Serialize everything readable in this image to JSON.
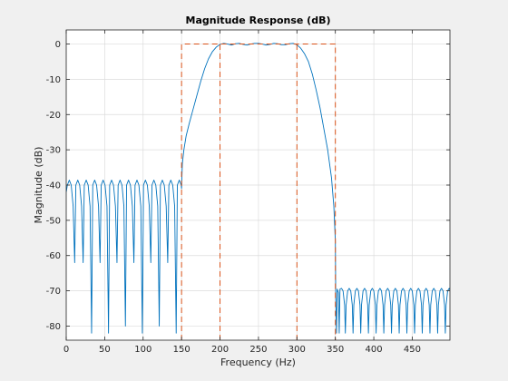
{
  "chart_data": {
    "type": "line",
    "title": "Magnitude Response (dB)",
    "xlabel": "Frequency (Hz)",
    "ylabel": "Magnitude (dB)",
    "xlim": [
      0,
      499
    ],
    "ylim": [
      -84,
      4
    ],
    "xticks": [
      0,
      50,
      100,
      150,
      200,
      250,
      300,
      350,
      400,
      450
    ],
    "xtick_labels": [
      "0",
      "50",
      "100",
      "150",
      "200",
      "250",
      "300",
      "350",
      "400",
      "450"
    ],
    "yticks": [
      0,
      -10,
      -20,
      -30,
      -40,
      -50,
      -60,
      -70,
      -80
    ],
    "ytick_labels": [
      "0",
      "-10",
      "-20",
      "-30",
      "-40",
      "-50",
      "-60",
      "-70",
      "-80"
    ],
    "grid": true,
    "legend": "none",
    "series": [
      {
        "color": "#0072bd",
        "style": "solid",
        "points": [
          [
            0,
            -42
          ],
          [
            1.5,
            -40
          ],
          [
            4,
            -38.6
          ],
          [
            6.5,
            -40
          ],
          [
            9,
            -46
          ],
          [
            11,
            -62
          ],
          [
            12.5,
            -40
          ],
          [
            15,
            -38.6
          ],
          [
            17.5,
            -40
          ],
          [
            20,
            -46
          ],
          [
            22,
            -62
          ],
          [
            23.5,
            -40
          ],
          [
            26,
            -38.6
          ],
          [
            28.5,
            -40
          ],
          [
            31,
            -46
          ],
          [
            33,
            -82
          ],
          [
            34.5,
            -40
          ],
          [
            37,
            -38.6
          ],
          [
            39.5,
            -40
          ],
          [
            42,
            -46
          ],
          [
            44,
            -62
          ],
          [
            45.5,
            -40
          ],
          [
            48,
            -38.6
          ],
          [
            50.5,
            -40
          ],
          [
            53,
            -46
          ],
          [
            55,
            -82
          ],
          [
            56.5,
            -40
          ],
          [
            59,
            -38.6
          ],
          [
            61.5,
            -40
          ],
          [
            64,
            -46
          ],
          [
            66,
            -62
          ],
          [
            67.5,
            -40
          ],
          [
            70,
            -38.6
          ],
          [
            72.5,
            -40
          ],
          [
            75,
            -46
          ],
          [
            77,
            -80
          ],
          [
            78.5,
            -40
          ],
          [
            81,
            -38.6
          ],
          [
            83.5,
            -40
          ],
          [
            86,
            -46
          ],
          [
            88,
            -62
          ],
          [
            89.5,
            -40
          ],
          [
            92,
            -38.6
          ],
          [
            94.5,
            -40
          ],
          [
            97,
            -46
          ],
          [
            99,
            -82
          ],
          [
            100.5,
            -40
          ],
          [
            103,
            -38.6
          ],
          [
            105.5,
            -40
          ],
          [
            108,
            -46
          ],
          [
            110,
            -62
          ],
          [
            111.5,
            -40
          ],
          [
            114,
            -38.6
          ],
          [
            116.5,
            -40
          ],
          [
            119,
            -46
          ],
          [
            121,
            -80
          ],
          [
            122.5,
            -40
          ],
          [
            125,
            -38.6
          ],
          [
            127.5,
            -40
          ],
          [
            130,
            -46
          ],
          [
            132,
            -62
          ],
          [
            133.5,
            -40
          ],
          [
            136,
            -38.6
          ],
          [
            138.5,
            -40
          ],
          [
            141,
            -46
          ],
          [
            143,
            -82
          ],
          [
            144.5,
            -40
          ],
          [
            147,
            -38.6
          ],
          [
            149.5,
            -40
          ],
          [
            150,
            -41
          ],
          [
            151,
            -34
          ],
          [
            153,
            -30
          ],
          [
            156,
            -26
          ],
          [
            160,
            -22.5
          ],
          [
            165,
            -18.5
          ],
          [
            170,
            -14.5
          ],
          [
            175,
            -10.5
          ],
          [
            180,
            -7
          ],
          [
            185,
            -4.2
          ],
          [
            190,
            -2.2
          ],
          [
            195,
            -0.9
          ],
          [
            200,
            -0.1
          ],
          [
            205,
            0.2
          ],
          [
            210,
            0
          ],
          [
            215,
            -0.3
          ],
          [
            220,
            0.1
          ],
          [
            225,
            0.2
          ],
          [
            230,
            -0.1
          ],
          [
            235,
            -0.3
          ],
          [
            240,
            0
          ],
          [
            245,
            0.2
          ],
          [
            250,
            0.2
          ],
          [
            255,
            0
          ],
          [
            260,
            -0.3
          ],
          [
            265,
            -0.1
          ],
          [
            270,
            0.2
          ],
          [
            275,
            0.1
          ],
          [
            280,
            -0.2
          ],
          [
            285,
            -0.2
          ],
          [
            290,
            0.1
          ],
          [
            295,
            0.2
          ],
          [
            300,
            -0.2
          ],
          [
            305,
            -1.2
          ],
          [
            310,
            -2.8
          ],
          [
            315,
            -5
          ],
          [
            320,
            -8.5
          ],
          [
            325,
            -13
          ],
          [
            330,
            -18
          ],
          [
            335,
            -24
          ],
          [
            340,
            -30
          ],
          [
            345,
            -38
          ],
          [
            348,
            -46
          ],
          [
            350,
            -56
          ],
          [
            350.5,
            -72
          ],
          [
            351.5,
            -82
          ],
          [
            352.5,
            -69.5
          ],
          [
            354,
            -70.5
          ],
          [
            355,
            -82
          ],
          [
            356,
            -69.5
          ],
          [
            358,
            -69.3
          ],
          [
            360,
            -70
          ],
          [
            362,
            -74
          ],
          [
            363,
            -82
          ],
          [
            364,
            -74
          ],
          [
            366,
            -70
          ],
          [
            368,
            -69.3
          ],
          [
            370,
            -70
          ],
          [
            372,
            -74
          ],
          [
            373,
            -82
          ],
          [
            374,
            -74
          ],
          [
            376,
            -70
          ],
          [
            378,
            -69.3
          ],
          [
            380,
            -70
          ],
          [
            382,
            -74
          ],
          [
            383,
            -82
          ],
          [
            384,
            -74
          ],
          [
            386,
            -70
          ],
          [
            388,
            -69.3
          ],
          [
            390,
            -70
          ],
          [
            392,
            -74
          ],
          [
            393,
            -82
          ],
          [
            394,
            -74
          ],
          [
            396,
            -70
          ],
          [
            398,
            -69.3
          ],
          [
            400,
            -70
          ],
          [
            402,
            -74
          ],
          [
            403,
            -82
          ],
          [
            404,
            -74
          ],
          [
            406,
            -70
          ],
          [
            408,
            -69.3
          ],
          [
            410,
            -70
          ],
          [
            412,
            -74
          ],
          [
            413,
            -82
          ],
          [
            414,
            -74
          ],
          [
            416,
            -70
          ],
          [
            418,
            -69.3
          ],
          [
            420,
            -70
          ],
          [
            422,
            -74
          ],
          [
            423,
            -82
          ],
          [
            424,
            -74
          ],
          [
            426,
            -70
          ],
          [
            428,
            -69.3
          ],
          [
            430,
            -70
          ],
          [
            432,
            -74
          ],
          [
            433,
            -82
          ],
          [
            434,
            -74
          ],
          [
            436,
            -70
          ],
          [
            438,
            -69.3
          ],
          [
            440,
            -70
          ],
          [
            442,
            -74
          ],
          [
            443,
            -82
          ],
          [
            444,
            -74
          ],
          [
            446,
            -70
          ],
          [
            448,
            -69.3
          ],
          [
            450,
            -70
          ],
          [
            452,
            -74
          ],
          [
            453,
            -82
          ],
          [
            454,
            -74
          ],
          [
            456,
            -70
          ],
          [
            458,
            -69.3
          ],
          [
            460,
            -70
          ],
          [
            462,
            -74
          ],
          [
            463,
            -82
          ],
          [
            464,
            -74
          ],
          [
            466,
            -70
          ],
          [
            468,
            -69.3
          ],
          [
            470,
            -70
          ],
          [
            472,
            -74
          ],
          [
            473,
            -82
          ],
          [
            474,
            -74
          ],
          [
            476,
            -70
          ],
          [
            478,
            -69.3
          ],
          [
            480,
            -70
          ],
          [
            482,
            -74
          ],
          [
            483,
            -82
          ],
          [
            484,
            -74
          ],
          [
            486,
            -70
          ],
          [
            488,
            -69.3
          ],
          [
            490,
            -70
          ],
          [
            492,
            -74
          ],
          [
            493,
            -82
          ],
          [
            494,
            -74
          ],
          [
            496,
            -70
          ],
          [
            498,
            -69.3
          ],
          [
            499,
            -69.8
          ]
        ]
      },
      {
        "color": "#d95319",
        "style": "dashed",
        "points": [
          [
            150,
            -84
          ],
          [
            150,
            0
          ],
          [
            350,
            0
          ],
          [
            350,
            -84
          ]
        ]
      },
      {
        "color": "#d95319",
        "style": "dashed",
        "points": [
          [
            200,
            -84
          ],
          [
            200,
            0
          ]
        ]
      },
      {
        "color": "#d95319",
        "style": "dashed",
        "points": [
          [
            300,
            -84
          ],
          [
            300,
            0
          ]
        ]
      }
    ]
  }
}
